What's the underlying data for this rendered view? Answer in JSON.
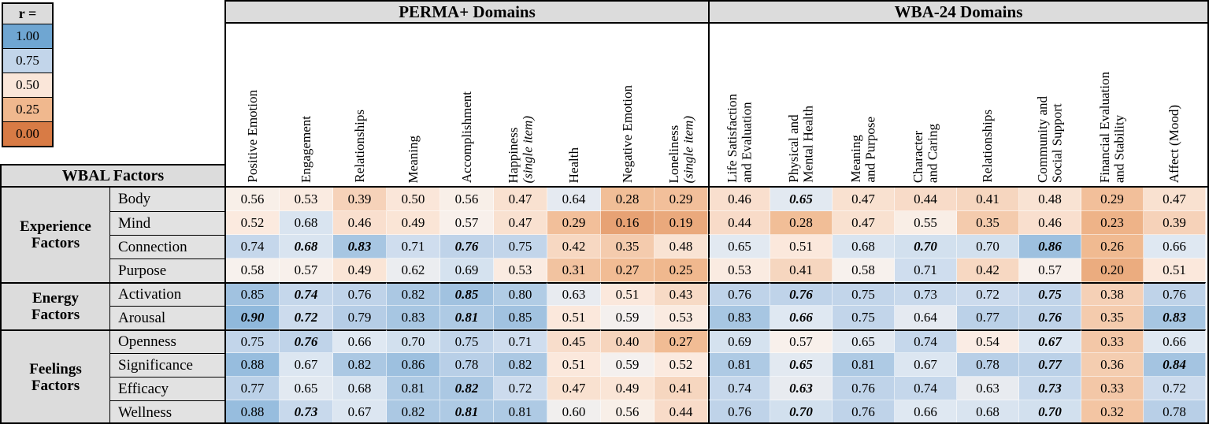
{
  "legend": {
    "title": "r =",
    "entries": [
      "1.00",
      "0.75",
      "0.50",
      "0.25",
      "0.00"
    ]
  },
  "left_header": "WBAL Factors",
  "sections": [
    {
      "title": "PERMA+ Domains",
      "columns": 9
    },
    {
      "title": "WBA-24 Domains",
      "columns": 8
    }
  ],
  "chart_data": {
    "type": "heatmap",
    "legend_label": "r =",
    "value_range": [
      0,
      1
    ],
    "columns": [
      {
        "label": "Positive Emotion",
        "sub": "",
        "group": "PERMA+ Domains"
      },
      {
        "label": "Engagement",
        "sub": "",
        "group": "PERMA+ Domains"
      },
      {
        "label": "Relationships",
        "sub": "",
        "group": "PERMA+ Domains"
      },
      {
        "label": "Meaning",
        "sub": "",
        "group": "PERMA+ Domains"
      },
      {
        "label": "Accomplishment",
        "sub": "",
        "group": "PERMA+ Domains"
      },
      {
        "label": "Happiness",
        "sub": "(single item)",
        "group": "PERMA+ Domains"
      },
      {
        "label": "Health",
        "sub": "",
        "group": "PERMA+ Domains"
      },
      {
        "label": "Negative Emotion",
        "sub": "",
        "group": "PERMA+ Domains"
      },
      {
        "label": "Loneliness",
        "sub": "(single item)",
        "group": "PERMA+ Domains"
      },
      {
        "label": "Life Satisfaction\nand Evaluation",
        "sub": "",
        "group": "WBA-24 Domains"
      },
      {
        "label": "Physical and\nMental Health",
        "sub": "",
        "group": "WBA-24 Domains"
      },
      {
        "label": "Meaning\nand Purpose",
        "sub": "",
        "group": "WBA-24 Domains"
      },
      {
        "label": "Character\nand Caring",
        "sub": "",
        "group": "WBA-24 Domains"
      },
      {
        "label": "Relationships",
        "sub": "",
        "group": "WBA-24 Domains"
      },
      {
        "label": "Community and\nSocial Support",
        "sub": "",
        "group": "WBA-24 Domains"
      },
      {
        "label": "Financial Evaluation\nand Stability",
        "sub": "",
        "group": "WBA-24 Domains"
      },
      {
        "label": "Affect (Mood)",
        "sub": "",
        "group": "WBA-24 Domains"
      }
    ],
    "row_groups": [
      {
        "label": "Experience\nFactors",
        "rows": [
          "Body",
          "Mind",
          "Connection",
          "Purpose"
        ]
      },
      {
        "label": "Energy\nFactors",
        "rows": [
          "Activation",
          "Arousal"
        ]
      },
      {
        "label": "Feelings\nFactors",
        "rows": [
          "Openness",
          "Significance",
          "Efficacy",
          "Wellness"
        ]
      }
    ],
    "values": [
      [
        "0.56",
        "0.53",
        "0.39",
        "0.50",
        "0.56",
        "0.47",
        "0.64",
        "0.28",
        "0.29",
        "0.46",
        "0.65",
        "0.47",
        "0.44",
        "0.41",
        "0.48",
        "0.29",
        "0.47"
      ],
      [
        "0.52",
        "0.68",
        "0.46",
        "0.49",
        "0.57",
        "0.47",
        "0.29",
        "0.16",
        "0.19",
        "0.44",
        "0.28",
        "0.47",
        "0.55",
        "0.35",
        "0.46",
        "0.23",
        "0.39"
      ],
      [
        "0.74",
        "0.68",
        "0.83",
        "0.71",
        "0.76",
        "0.75",
        "0.42",
        "0.35",
        "0.48",
        "0.65",
        "0.51",
        "0.68",
        "0.70",
        "0.70",
        "0.86",
        "0.26",
        "0.66"
      ],
      [
        "0.58",
        "0.57",
        "0.49",
        "0.62",
        "0.69",
        "0.53",
        "0.31",
        "0.27",
        "0.25",
        "0.53",
        "0.41",
        "0.58",
        "0.71",
        "0.42",
        "0.57",
        "0.20",
        "0.51"
      ],
      [
        "0.85",
        "0.74",
        "0.76",
        "0.82",
        "0.85",
        "0.80",
        "0.63",
        "0.51",
        "0.43",
        "0.76",
        "0.76",
        "0.75",
        "0.73",
        "0.72",
        "0.75",
        "0.38",
        "0.76"
      ],
      [
        "0.90",
        "0.72",
        "0.79",
        "0.83",
        "0.81",
        "0.85",
        "0.51",
        "0.59",
        "0.53",
        "0.83",
        "0.66",
        "0.75",
        "0.64",
        "0.77",
        "0.76",
        "0.35",
        "0.83"
      ],
      [
        "0.75",
        "0.76",
        "0.66",
        "0.70",
        "0.75",
        "0.71",
        "0.45",
        "0.40",
        "0.27",
        "0.69",
        "0.57",
        "0.65",
        "0.74",
        "0.54",
        "0.67",
        "0.33",
        "0.66"
      ],
      [
        "0.88",
        "0.67",
        "0.82",
        "0.86",
        "0.78",
        "0.82",
        "0.51",
        "0.59",
        "0.52",
        "0.81",
        "0.65",
        "0.81",
        "0.67",
        "0.78",
        "0.77",
        "0.36",
        "0.84"
      ],
      [
        "0.77",
        "0.65",
        "0.68",
        "0.81",
        "0.82",
        "0.72",
        "0.47",
        "0.49",
        "0.41",
        "0.74",
        "0.63",
        "0.76",
        "0.74",
        "0.63",
        "0.73",
        "0.33",
        "0.72"
      ],
      [
        "0.88",
        "0.73",
        "0.67",
        "0.82",
        "0.81",
        "0.81",
        "0.60",
        "0.56",
        "0.44",
        "0.76",
        "0.70",
        "0.76",
        "0.66",
        "0.68",
        "0.70",
        "0.32",
        "0.78"
      ]
    ],
    "bold_italic": [
      [
        0,
        0,
        0,
        0,
        0,
        0,
        0,
        0,
        0,
        0,
        1,
        0,
        0,
        0,
        0,
        0,
        0
      ],
      [
        0,
        0,
        0,
        0,
        0,
        0,
        0,
        0,
        0,
        0,
        0,
        0,
        0,
        0,
        0,
        0,
        0
      ],
      [
        0,
        1,
        1,
        0,
        1,
        0,
        0,
        0,
        0,
        0,
        0,
        0,
        1,
        0,
        1,
        0,
        0
      ],
      [
        0,
        0,
        0,
        0,
        0,
        0,
        0,
        0,
        0,
        0,
        0,
        0,
        0,
        0,
        0,
        0,
        0
      ],
      [
        0,
        1,
        0,
        0,
        1,
        0,
        0,
        0,
        0,
        0,
        1,
        0,
        0,
        0,
        1,
        0,
        0
      ],
      [
        1,
        1,
        0,
        0,
        1,
        0,
        0,
        0,
        0,
        0,
        1,
        0,
        0,
        0,
        1,
        0,
        1
      ],
      [
        0,
        1,
        0,
        0,
        0,
        0,
        0,
        0,
        0,
        0,
        0,
        0,
        0,
        0,
        1,
        0,
        0
      ],
      [
        0,
        0,
        0,
        0,
        0,
        0,
        0,
        0,
        0,
        0,
        1,
        0,
        0,
        0,
        1,
        0,
        1
      ],
      [
        0,
        0,
        0,
        0,
        1,
        0,
        0,
        0,
        0,
        0,
        1,
        0,
        0,
        0,
        1,
        0,
        0
      ],
      [
        0,
        1,
        0,
        0,
        1,
        0,
        0,
        0,
        0,
        0,
        1,
        0,
        0,
        0,
        1,
        0,
        0
      ]
    ],
    "color_scale": {
      "stops": [
        {
          "value": 0.0,
          "color": "#d87b45"
        },
        {
          "value": 0.25,
          "color": "#f0b88e"
        },
        {
          "value": 0.4,
          "color": "#f6d4bc"
        },
        {
          "value": 0.52,
          "color": "#fbeadf"
        },
        {
          "value": 0.58,
          "color": "#f7f1ed"
        },
        {
          "value": 0.66,
          "color": "#dfe8f2"
        },
        {
          "value": 0.75,
          "color": "#c2d5ea"
        },
        {
          "value": 1.0,
          "color": "#6fa6d2"
        }
      ]
    }
  }
}
